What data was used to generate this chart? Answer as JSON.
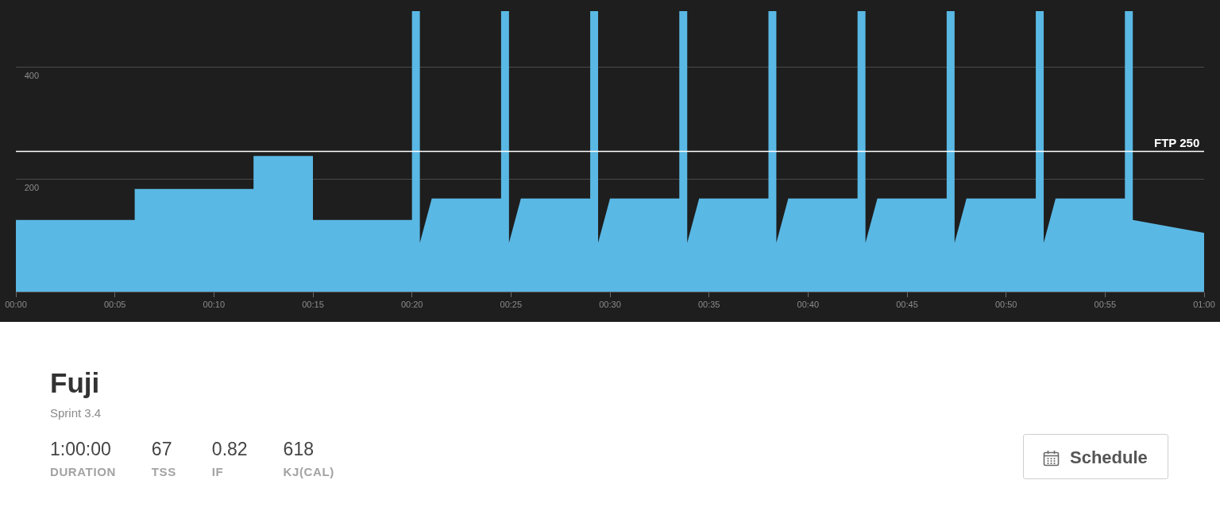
{
  "chart_data": [
    {
      "type": "area",
      "color": "#5ab8e4",
      "x": [
        0,
        6,
        6,
        12,
        12,
        15,
        15,
        20,
        20,
        20.4,
        20.4,
        21,
        24.5,
        24.5,
        24.9,
        24.9,
        25.5,
        29,
        29,
        29.4,
        29.4,
        30,
        33.5,
        33.5,
        33.9,
        33.9,
        34.5,
        38,
        38,
        38.4,
        38.4,
        39,
        42.5,
        42.5,
        42.9,
        42.9,
        43.5,
        47,
        47,
        47.4,
        47.4,
        48,
        51.5,
        51.5,
        51.9,
        51.9,
        52.5,
        56,
        56,
        56.4,
        56.4,
        60
      ],
      "values": [
        128,
        128,
        183,
        183,
        242,
        242,
        128,
        128,
        500,
        500,
        87,
        166,
        166,
        500,
        500,
        87,
        166,
        166,
        500,
        500,
        87,
        166,
        166,
        500,
        500,
        87,
        166,
        166,
        500,
        500,
        87,
        166,
        166,
        500,
        500,
        87,
        166,
        166,
        500,
        500,
        87,
        166,
        166,
        500,
        500,
        87,
        166,
        166,
        500,
        500,
        128,
        105
      ],
      "xlim": [
        0,
        60
      ],
      "xticks": [
        {
          "value": 0,
          "label": "00:00"
        },
        {
          "value": 5,
          "label": "00:05"
        },
        {
          "value": 10,
          "label": "00:10"
        },
        {
          "value": 15,
          "label": "00:15"
        },
        {
          "value": 20,
          "label": "00:20"
        },
        {
          "value": 25,
          "label": "00:25"
        },
        {
          "value": 30,
          "label": "00:30"
        },
        {
          "value": 35,
          "label": "00:35"
        },
        {
          "value": 40,
          "label": "00:40"
        },
        {
          "value": 45,
          "label": "00:45"
        },
        {
          "value": 50,
          "label": "00:50"
        },
        {
          "value": 55,
          "label": "00:55"
        },
        {
          "value": 60,
          "label": "01:00"
        }
      ],
      "ylim": [
        0,
        520
      ],
      "yticks": [
        200,
        400
      ],
      "grid": "y",
      "ref_lines": [
        {
          "axis": "y",
          "value": 250,
          "label": "FTP 250",
          "color": "#ffffff"
        }
      ]
    },
    {
      "type": "other",
      "title": "Fuji",
      "subtitle": "Sprint 3.4",
      "annotations": [
        "1:00:00",
        "DURATION",
        "67",
        "TSS",
        "0.82",
        "IF",
        "618",
        "KJ(CAL)",
        "Schedule"
      ]
    }
  ]
}
